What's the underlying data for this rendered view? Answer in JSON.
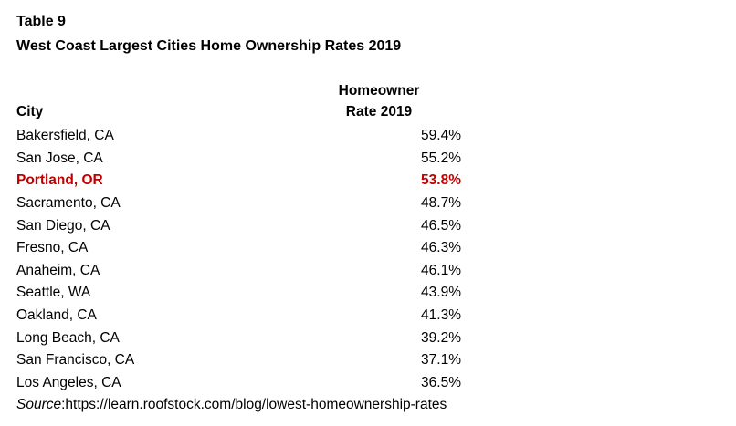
{
  "colors": {
    "highlight": "#c00000",
    "text": "#000000",
    "background": "#ffffff"
  },
  "document": {
    "table_label": "Table 9",
    "title": "West Coast Largest Cities Home Ownership Rates 2019",
    "source_prefix": "Source",
    "source_rest": ":https://learn.roofstock.com/blog/lowest-homeownership-rates"
  },
  "table": {
    "columns": {
      "city": "City",
      "rate_line1": "Homeowner",
      "rate_line2": "Rate 2019"
    },
    "rows": [
      {
        "city": "Bakersfield, CA",
        "rate": "59.4%",
        "highlight": false
      },
      {
        "city": "San Jose, CA",
        "rate": "55.2%",
        "highlight": false
      },
      {
        "city": "Portland, OR",
        "rate": "53.8%",
        "highlight": true
      },
      {
        "city": "Sacramento, CA",
        "rate": "48.7%",
        "highlight": false
      },
      {
        "city": "San Diego, CA",
        "rate": "46.5%",
        "highlight": false
      },
      {
        "city": "Fresno, CA",
        "rate": "46.3%",
        "highlight": false
      },
      {
        "city": "Anaheim, CA",
        "rate": "46.1%",
        "highlight": false
      },
      {
        "city": "Seattle, WA",
        "rate": "43.9%",
        "highlight": false
      },
      {
        "city": "Oakland, CA",
        "rate": "41.3%",
        "highlight": false
      },
      {
        "city": "Long Beach, CA",
        "rate": "39.2%",
        "highlight": false
      },
      {
        "city": "San Francisco, CA",
        "rate": "37.1%",
        "highlight": false
      },
      {
        "city": "Los Angeles, CA",
        "rate": "36.5%",
        "highlight": false
      }
    ]
  },
  "chart_data": {
    "type": "table",
    "title": "West Coast Largest Cities Home Ownership Rates 2019",
    "table_label": "Table 9",
    "columns": [
      "City",
      "Homeowner Rate 2019"
    ],
    "rows": [
      [
        "Bakersfield, CA",
        59.4
      ],
      [
        "San Jose, CA",
        55.2
      ],
      [
        "Portland, OR",
        53.8
      ],
      [
        "Sacramento, CA",
        48.7
      ],
      [
        "San Diego, CA",
        46.5
      ],
      [
        "Fresno, CA",
        46.3
      ],
      [
        "Anaheim, CA",
        46.1
      ],
      [
        "Seattle, WA",
        43.9
      ],
      [
        "Oakland, CA",
        41.3
      ],
      [
        "Long Beach, CA",
        39.2
      ],
      [
        "San Francisco, CA",
        37.1
      ],
      [
        "Los Angeles, CA",
        36.5
      ]
    ],
    "unit": "percent",
    "highlighted_row": "Portland, OR",
    "source": "https://learn.roofstock.com/blog/lowest-homeownership-rates"
  }
}
